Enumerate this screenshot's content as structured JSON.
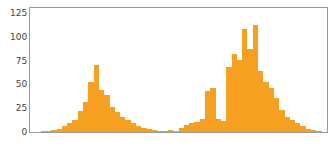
{
  "chart_data": {
    "type": "bar",
    "categories": [
      null,
      null,
      null,
      null,
      null,
      null,
      null,
      null,
      null,
      null,
      null,
      null,
      null,
      null,
      null,
      null,
      null,
      null,
      null,
      null,
      null,
      null,
      null,
      null,
      null,
      null,
      null,
      null,
      null,
      null,
      null,
      null,
      null,
      null,
      null,
      null,
      null,
      null,
      null,
      null,
      null,
      null,
      null,
      null,
      null,
      null,
      null,
      null,
      null,
      null,
      null,
      null,
      null,
      null,
      null,
      null
    ],
    "values": [
      0,
      0,
      1,
      1,
      2,
      3,
      6,
      9,
      13,
      22,
      31,
      52,
      70,
      44,
      39,
      26,
      21,
      16,
      13,
      9,
      6,
      4,
      3,
      2,
      1,
      1,
      2,
      1,
      4,
      7,
      9,
      11,
      14,
      43,
      46,
      14,
      12,
      68,
      82,
      75,
      108,
      87,
      112,
      64,
      52,
      46,
      36,
      23,
      16,
      13,
      9,
      6,
      3,
      2,
      1,
      0
    ],
    "color": "#f5a020",
    "ylim": [
      0,
      130
    ],
    "yticks": [
      0,
      25,
      50,
      75,
      100,
      125
    ],
    "grid": false,
    "tick_labels": "y"
  }
}
